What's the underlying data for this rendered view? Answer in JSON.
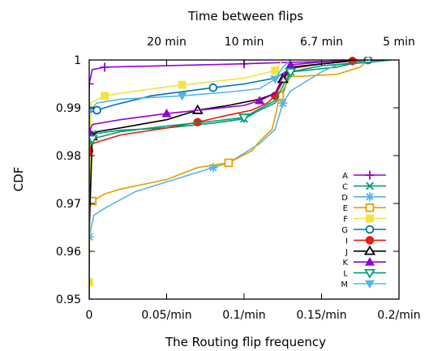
{
  "chart_data": {
    "type": "line",
    "title": "",
    "xlabel": "The Routing flip frequency",
    "ylabel": "CDF",
    "top_xlabel": "Time between flips",
    "xlim": [
      0,
      0.2
    ],
    "ylim": [
      0.95,
      1.0
    ],
    "x_ticks": [
      0,
      0.05,
      0.1,
      0.15,
      0.2
    ],
    "x_tick_labels": [
      "0",
      "0.05/min",
      "0.1/min",
      "0.15/min",
      "0.2/min"
    ],
    "y_ticks": [
      0.95,
      0.96,
      0.97,
      0.98,
      0.99,
      1.0
    ],
    "y_tick_labels": [
      "0.95",
      "0.96",
      "0.97",
      "0.98",
      "0.99",
      "1"
    ],
    "top_ticks": [
      0.05,
      0.1,
      0.15,
      0.2
    ],
    "top_tick_labels": [
      "20 min",
      "10 min",
      "6.7 min",
      "5 min"
    ],
    "grid": false,
    "legend": "right",
    "series": [
      {
        "name": "A",
        "color": "#9400d3",
        "marker": "plus",
        "points": [
          [
            0,
            0.95
          ],
          [
            0,
            0.995
          ],
          [
            0.002,
            0.998
          ],
          [
            0.01,
            0.9985
          ],
          [
            0.05,
            0.9988
          ],
          [
            0.1,
            0.9992
          ],
          [
            0.128,
            0.9995
          ],
          [
            0.17,
            0.9998
          ],
          [
            0.19,
            1.0
          ]
        ]
      },
      {
        "name": "C",
        "color": "#009e73",
        "marker": "cross",
        "points": [
          [
            0,
            0.95
          ],
          [
            0,
            0.983
          ],
          [
            0.002,
            0.9845
          ],
          [
            0.02,
            0.9853
          ],
          [
            0.05,
            0.9858
          ],
          [
            0.08,
            0.9868
          ],
          [
            0.1,
            0.9877
          ],
          [
            0.11,
            0.9895
          ],
          [
            0.12,
            0.991
          ],
          [
            0.125,
            0.993
          ],
          [
            0.13,
            0.9975
          ],
          [
            0.16,
            0.9985
          ],
          [
            0.18,
            1.0
          ]
        ]
      },
      {
        "name": "D",
        "color": "#56b4e9",
        "marker": "star",
        "points": [
          [
            0,
            0.95
          ],
          [
            0,
            0.963
          ],
          [
            0.003,
            0.9675
          ],
          [
            0.01,
            0.969
          ],
          [
            0.03,
            0.9725
          ],
          [
            0.06,
            0.9755
          ],
          [
            0.08,
            0.9775
          ],
          [
            0.09,
            0.9785
          ],
          [
            0.1,
            0.9805
          ],
          [
            0.11,
            0.9825
          ],
          [
            0.12,
            0.9855
          ],
          [
            0.125,
            0.991
          ],
          [
            0.13,
            0.9935
          ],
          [
            0.14,
            0.9955
          ],
          [
            0.15,
            0.9975
          ],
          [
            0.16,
            0.999
          ],
          [
            0.18,
            1.0
          ]
        ]
      },
      {
        "name": "E",
        "color": "#e69f00",
        "marker": "square",
        "points": [
          [
            0,
            0.95
          ],
          [
            0,
            0.969
          ],
          [
            0.002,
            0.9705
          ],
          [
            0.01,
            0.972
          ],
          [
            0.02,
            0.973
          ],
          [
            0.05,
            0.975
          ],
          [
            0.07,
            0.9775
          ],
          [
            0.09,
            0.9785
          ],
          [
            0.105,
            0.981
          ],
          [
            0.11,
            0.983
          ],
          [
            0.118,
            0.9855
          ],
          [
            0.12,
            0.988
          ],
          [
            0.123,
            0.9925
          ],
          [
            0.13,
            0.9965
          ],
          [
            0.16,
            0.997
          ],
          [
            0.175,
            0.9985
          ],
          [
            0.18,
            1.0
          ]
        ]
      },
      {
        "name": "F",
        "color": "#f0e442",
        "marker": "fsquare",
        "points": [
          [
            0,
            0.95
          ],
          [
            0,
            0.9535
          ],
          [
            0.001,
            0.991
          ],
          [
            0.01,
            0.9925
          ],
          [
            0.03,
            0.9935
          ],
          [
            0.06,
            0.9948
          ],
          [
            0.1,
            0.9962
          ],
          [
            0.12,
            0.9978
          ],
          [
            0.125,
            1.0
          ]
        ]
      },
      {
        "name": "G",
        "color": "#0072b2",
        "marker": "circle",
        "points": [
          [
            0,
            0.95
          ],
          [
            0,
            0.989
          ],
          [
            0.005,
            0.9895
          ],
          [
            0.015,
            0.9905
          ],
          [
            0.04,
            0.9925
          ],
          [
            0.08,
            0.9942
          ],
          [
            0.1,
            0.995
          ],
          [
            0.12,
            0.9962
          ],
          [
            0.13,
            0.9982
          ],
          [
            0.15,
            0.9992
          ],
          [
            0.17,
            0.9998
          ],
          [
            0.18,
            1.0
          ]
        ]
      },
      {
        "name": "I",
        "color": "#e51e10",
        "marker": "fcircle",
        "points": [
          [
            0,
            0.95
          ],
          [
            0,
            0.981
          ],
          [
            0.002,
            0.9825
          ],
          [
            0.02,
            0.9843
          ],
          [
            0.05,
            0.9858
          ],
          [
            0.07,
            0.987
          ],
          [
            0.09,
            0.9885
          ],
          [
            0.105,
            0.9895
          ],
          [
            0.115,
            0.991
          ],
          [
            0.12,
            0.9925
          ],
          [
            0.125,
            0.9955
          ],
          [
            0.13,
            0.9982
          ],
          [
            0.15,
            0.9992
          ],
          [
            0.17,
            0.9998
          ],
          [
            0.18,
            1.0
          ]
        ]
      },
      {
        "name": "J",
        "color": "#000000",
        "marker": "triangle",
        "points": [
          [
            0,
            0.95
          ],
          [
            0,
            0.964
          ],
          [
            0.002,
            0.984
          ],
          [
            0.005,
            0.985
          ],
          [
            0.02,
            0.9858
          ],
          [
            0.05,
            0.9875
          ],
          [
            0.07,
            0.9895
          ],
          [
            0.09,
            0.9905
          ],
          [
            0.11,
            0.9918
          ],
          [
            0.12,
            0.993
          ],
          [
            0.125,
            0.996
          ],
          [
            0.13,
            0.9985
          ],
          [
            0.16,
            0.9995
          ],
          [
            0.17,
            1.0
          ]
        ]
      },
      {
        "name": "K",
        "color": "#9400d3",
        "marker": "ftriangle",
        "points": [
          [
            0,
            0.95
          ],
          [
            0,
            0.985
          ],
          [
            0.002,
            0.9865
          ],
          [
            0.02,
            0.9875
          ],
          [
            0.05,
            0.9888
          ],
          [
            0.08,
            0.9898
          ],
          [
            0.1,
            0.9905
          ],
          [
            0.11,
            0.9915
          ],
          [
            0.12,
            0.993
          ],
          [
            0.125,
            0.9965
          ],
          [
            0.13,
            0.999
          ],
          [
            0.165,
            1.0
          ]
        ]
      },
      {
        "name": "L",
        "color": "#009e73",
        "marker": "dtriangle",
        "points": [
          [
            0,
            0.95
          ],
          [
            0,
            0.982
          ],
          [
            0.002,
            0.9835
          ],
          [
            0.02,
            0.985
          ],
          [
            0.05,
            0.9862
          ],
          [
            0.08,
            0.9872
          ],
          [
            0.1,
            0.988
          ],
          [
            0.11,
            0.9898
          ],
          [
            0.12,
            0.9915
          ],
          [
            0.125,
            0.9945
          ],
          [
            0.13,
            0.9975
          ],
          [
            0.15,
            0.9988
          ],
          [
            0.18,
            0.9995
          ],
          [
            0.195,
            1.0
          ]
        ]
      },
      {
        "name": "M",
        "color": "#56b4e9",
        "marker": "fdtriangle",
        "points": [
          [
            0,
            0.95
          ],
          [
            0,
            0.9895
          ],
          [
            0.005,
            0.991
          ],
          [
            0.02,
            0.9918
          ],
          [
            0.06,
            0.9925
          ],
          [
            0.09,
            0.9933
          ],
          [
            0.11,
            0.994
          ],
          [
            0.12,
            0.996
          ],
          [
            0.125,
            0.9985
          ],
          [
            0.13,
            1.0
          ]
        ]
      }
    ]
  }
}
